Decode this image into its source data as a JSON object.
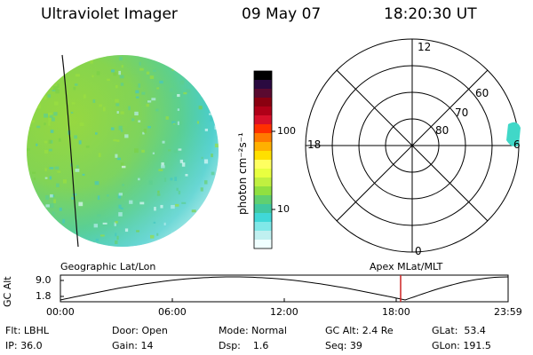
{
  "header": {
    "instrument": "Ultraviolet Imager",
    "date": "09 May 07",
    "time": "18:20:30 UT"
  },
  "colorbar": {
    "label": "photon cm⁻²s⁻¹",
    "ticks": [
      "100",
      "10"
    ],
    "colors": [
      "#000000",
      "#2a0a40",
      "#5a0a30",
      "#8a0010",
      "#b00018",
      "#d8102a",
      "#ff3000",
      "#ff7a00",
      "#ffb000",
      "#ffe000",
      "#ffff60",
      "#e8ff40",
      "#c0f040",
      "#90e040",
      "#60d070",
      "#40c8a0",
      "#40d8d8",
      "#80e8e8",
      "#c0f0f0",
      "#f0ffff"
    ]
  },
  "polar": {
    "mlt_labels": {
      "top": "12",
      "left": "18",
      "right": "6",
      "bottom": "0"
    },
    "lat_labels": [
      "60",
      "70",
      "80"
    ]
  },
  "timeline": {
    "left_title": "Geographic Lat/Lon",
    "right_title": "Apex MLat/MLT",
    "axis_name": "GC Alt",
    "y_ticks": [
      "9.0",
      "1.8"
    ],
    "x_ticks": [
      "00:00",
      "06:00",
      "12:00",
      "18:00",
      "23:59"
    ],
    "marker_color": "#cc2222"
  },
  "info": {
    "flt": "Flt: LBHL",
    "ip": "IP: 36.0",
    "door": "Door: Open",
    "gain": "Gain: 14",
    "mode": "Mode: Normal",
    "dsp": "Dsp:    1.6",
    "gcalt": "GC Alt: 2.4 Re",
    "seq": "Seq: 39",
    "glat": "GLat:  53.4",
    "glon": "GLon: 191.5"
  }
}
